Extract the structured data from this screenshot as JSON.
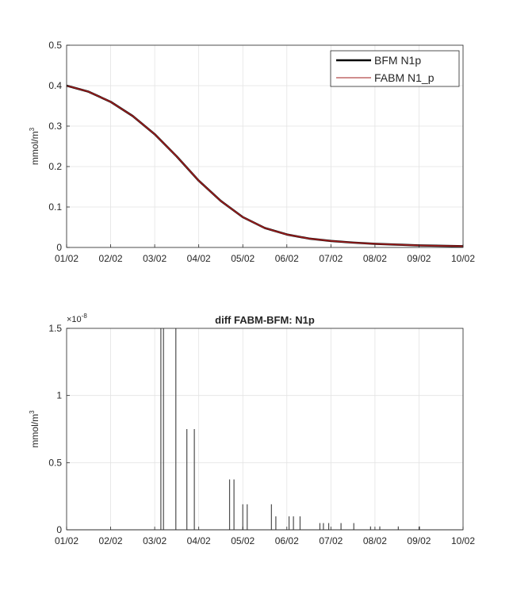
{
  "chart_data": [
    {
      "type": "line",
      "title": "",
      "xlabel": "",
      "ylabel": "mmol/m",
      "ylabel_exponent": "3",
      "xticks": [
        "01/02",
        "02/02",
        "03/02",
        "04/02",
        "05/02",
        "06/02",
        "07/02",
        "08/02",
        "09/02",
        "10/02"
      ],
      "yticks": [
        "0",
        "0.1",
        "0.2",
        "0.3",
        "0.4",
        "0.5"
      ],
      "xlim": [
        0,
        9
      ],
      "ylim": [
        0,
        0.5
      ],
      "grid": true,
      "legend_position": "top-right",
      "series": [
        {
          "name": "BFM N1p",
          "color": "#000000",
          "x": [
            0,
            0.5,
            1,
            1.5,
            2,
            2.5,
            3,
            3.5,
            4,
            4.5,
            5,
            5.5,
            6,
            6.5,
            7,
            7.5,
            8,
            8.5,
            9
          ],
          "y": [
            0.4,
            0.385,
            0.36,
            0.325,
            0.28,
            0.225,
            0.165,
            0.115,
            0.075,
            0.048,
            0.032,
            0.022,
            0.016,
            0.012,
            0.009,
            0.007,
            0.005,
            0.004,
            0.003
          ]
        },
        {
          "name": "FABM N1_p",
          "color": "#a11d1d",
          "x": [
            0,
            0.5,
            1,
            1.5,
            2,
            2.5,
            3,
            3.5,
            4,
            4.5,
            5,
            5.5,
            6,
            6.5,
            7,
            7.5,
            8,
            8.5,
            9
          ],
          "y": [
            0.4,
            0.385,
            0.36,
            0.325,
            0.28,
            0.225,
            0.165,
            0.115,
            0.075,
            0.048,
            0.032,
            0.022,
            0.016,
            0.012,
            0.009,
            0.007,
            0.005,
            0.004,
            0.003
          ]
        }
      ]
    },
    {
      "type": "line",
      "title": "diff FABM-BFM: N1p",
      "xlabel": "",
      "ylabel": "mmol/m",
      "ylabel_exponent": "3",
      "y_multiplier_base": "×10",
      "y_multiplier_exponent": "-8",
      "xticks": [
        "01/02",
        "02/02",
        "03/02",
        "04/02",
        "05/02",
        "06/02",
        "07/02",
        "08/02",
        "09/02",
        "10/02"
      ],
      "yticks": [
        "0",
        "0.5",
        "1",
        "1.5"
      ],
      "xlim": [
        0,
        9
      ],
      "ylim": [
        0,
        1.5
      ],
      "grid": true,
      "series": [
        {
          "color": "#4d4d4d",
          "spikes_x": [
            2.14,
            2.2,
            2.48,
            2.73,
            2.9,
            3.7,
            3.8,
            4.0,
            4.1,
            4.65,
            4.75,
            5.05,
            5.15,
            5.3,
            5.75,
            5.83,
            5.95,
            6.23,
            6.52,
            6.9,
            7.11,
            7.53,
            8.01
          ],
          "spikes_y": [
            1.5,
            1.5,
            1.5,
            0.75,
            0.75,
            0.375,
            0.375,
            0.19,
            0.19,
            0.19,
            0.1,
            0.1,
            0.1,
            0.1,
            0.05,
            0.05,
            0.05,
            0.05,
            0.05,
            0.025,
            0.025,
            0.025,
            0.025
          ]
        }
      ]
    }
  ]
}
